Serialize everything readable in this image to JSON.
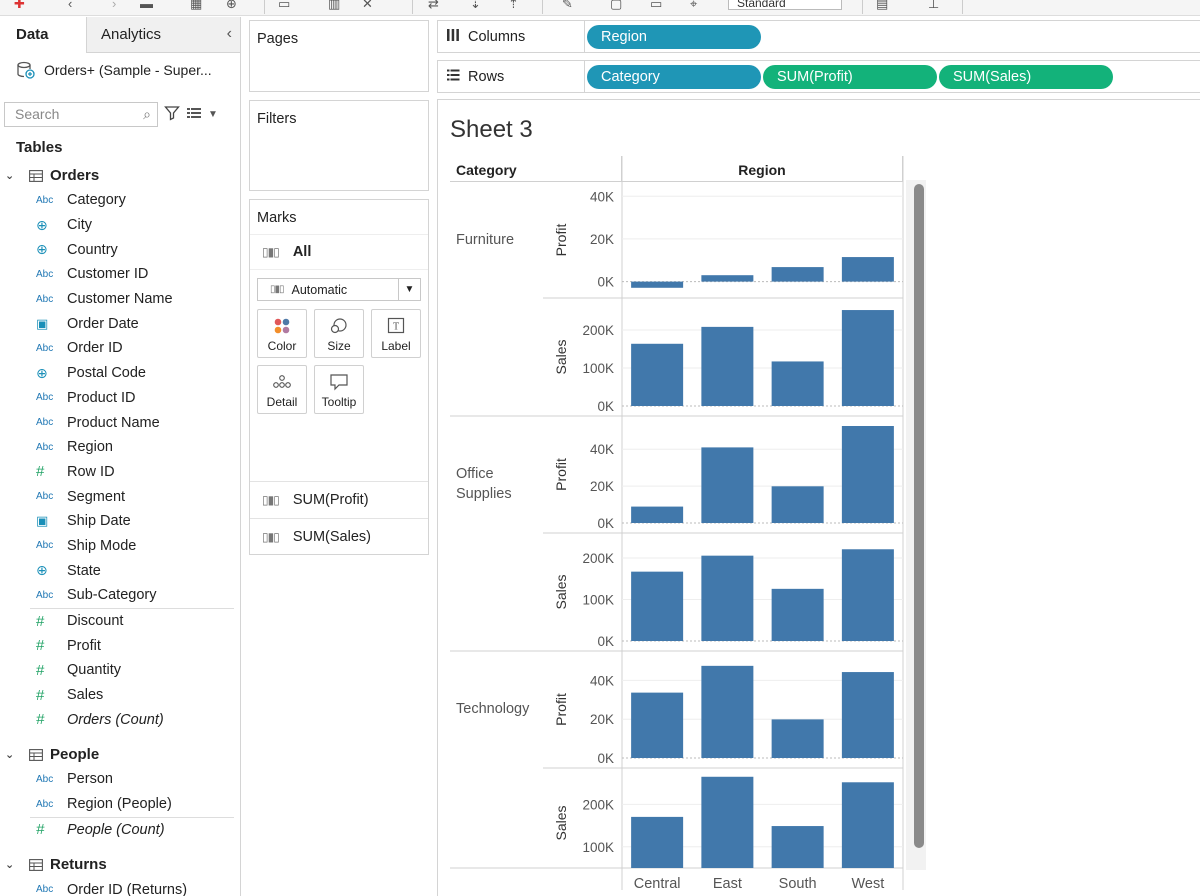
{
  "toolbar": {
    "dropdown_value": "Standard"
  },
  "data_pane": {
    "tabs": [
      {
        "label": "Data"
      },
      {
        "label": "Analytics"
      }
    ],
    "datasource": "Orders+ (Sample - Super...",
    "search_placeholder": "Search",
    "tables_header": "Tables",
    "tables": [
      {
        "name": "Orders",
        "fields": [
          {
            "type": "Abc",
            "name": "Category"
          },
          {
            "type": "geo",
            "name": "City"
          },
          {
            "type": "geo",
            "name": "Country"
          },
          {
            "type": "Abc",
            "name": "Customer ID"
          },
          {
            "type": "Abc",
            "name": "Customer Name"
          },
          {
            "type": "date",
            "name": "Order Date"
          },
          {
            "type": "Abc",
            "name": "Order ID"
          },
          {
            "type": "geo",
            "name": "Postal Code"
          },
          {
            "type": "Abc",
            "name": "Product ID"
          },
          {
            "type": "Abc",
            "name": "Product Name"
          },
          {
            "type": "Abc",
            "name": "Region"
          },
          {
            "type": "#",
            "name": "Row ID"
          },
          {
            "type": "Abc",
            "name": "Segment"
          },
          {
            "type": "date",
            "name": "Ship Date"
          },
          {
            "type": "Abc",
            "name": "Ship Mode"
          },
          {
            "type": "geo",
            "name": "State"
          },
          {
            "type": "Abc",
            "name": "Sub-Category"
          }
        ],
        "measures": [
          {
            "type": "#",
            "name": "Discount"
          },
          {
            "type": "#",
            "name": "Profit"
          },
          {
            "type": "#",
            "name": "Quantity"
          },
          {
            "type": "#",
            "name": "Sales"
          },
          {
            "type": "#",
            "name": "Orders (Count)",
            "italic": true
          }
        ]
      },
      {
        "name": "People",
        "fields": [
          {
            "type": "Abc",
            "name": "Person"
          },
          {
            "type": "Abc",
            "name": "Region (People)"
          }
        ],
        "measures": [
          {
            "type": "#",
            "name": "People (Count)",
            "italic": true
          }
        ]
      },
      {
        "name": "Returns",
        "fields": [
          {
            "type": "Abc",
            "name": "Order ID (Returns)"
          }
        ],
        "measures": []
      }
    ]
  },
  "pages_label": "Pages",
  "filters_label": "Filters",
  "marks": {
    "title": "Marks",
    "all_label": "All",
    "mark_type": "Automatic",
    "buttons": [
      {
        "label": "Color",
        "icon": "color-icon"
      },
      {
        "label": "Size",
        "icon": "size-icon"
      },
      {
        "label": "Label",
        "icon": "label-icon"
      },
      {
        "label": "Detail",
        "icon": "detail-icon"
      },
      {
        "label": "Tooltip",
        "icon": "tooltip-icon"
      }
    ],
    "measure_cards": [
      "SUM(Profit)",
      "SUM(Sales)"
    ]
  },
  "shelves": {
    "columns_label": "Columns",
    "columns_pills": [
      "Region"
    ],
    "rows_label": "Rows",
    "rows_pills": [
      "Category",
      "SUM(Profit)",
      "SUM(Sales)"
    ]
  },
  "sheet": {
    "title": "Sheet 3",
    "category_header": "Category",
    "region_header": "Region"
  },
  "chart_data": {
    "type": "bar",
    "bar_color": "#4178ab",
    "categories": [
      "Central",
      "East",
      "South",
      "West"
    ],
    "row_groups": [
      "Furniture",
      "Office Supplies",
      "Technology"
    ],
    "measures": [
      "Profit",
      "Sales"
    ],
    "panels": [
      {
        "category": "Furniture",
        "measure": "Profit",
        "values": [
          -2900,
          3000,
          6800,
          11500
        ],
        "ticks": [
          "40K",
          "20K",
          "0K"
        ],
        "tick_values": [
          40000,
          20000,
          0
        ],
        "ylim": [
          -3000,
          42000
        ]
      },
      {
        "category": "Furniture",
        "measure": "Sales",
        "values": [
          163800,
          208300,
          117300,
          252600
        ],
        "ticks": [
          "200K",
          "100K",
          "0K"
        ],
        "tick_values": [
          200000,
          100000,
          0
        ],
        "ylim": [
          0,
          258000
        ]
      },
      {
        "category": "Office Supplies",
        "measure": "Profit",
        "values": [
          8900,
          41000,
          19900,
          52600
        ],
        "ticks": [
          "40K",
          "20K",
          "0K"
        ],
        "tick_values": [
          40000,
          20000,
          0
        ],
        "ylim": [
          0,
          52600
        ]
      },
      {
        "category": "Office Supplies",
        "measure": "Sales",
        "values": [
          167000,
          205500,
          125600,
          220900
        ],
        "ticks": [
          "200K",
          "100K",
          "0K"
        ],
        "tick_values": [
          200000,
          100000,
          0
        ],
        "ylim": [
          0,
          236000
        ]
      },
      {
        "category": "Technology",
        "measure": "Profit",
        "values": [
          33700,
          47500,
          19900,
          44300
        ],
        "ticks": [
          "40K",
          "20K",
          "0K"
        ],
        "tick_values": [
          40000,
          20000,
          0
        ],
        "ylim": [
          0,
          50000
        ]
      },
      {
        "category": "Technology",
        "measure": "Sales",
        "values": [
          170400,
          264900,
          148800,
          251900
        ],
        "ticks": [
          "200K",
          "100K"
        ],
        "tick_values": [
          200000,
          100000
        ],
        "ylim": [
          50000,
          262000
        ]
      }
    ],
    "title": "Sheet 3",
    "xlabel": "Region",
    "grid": true
  }
}
